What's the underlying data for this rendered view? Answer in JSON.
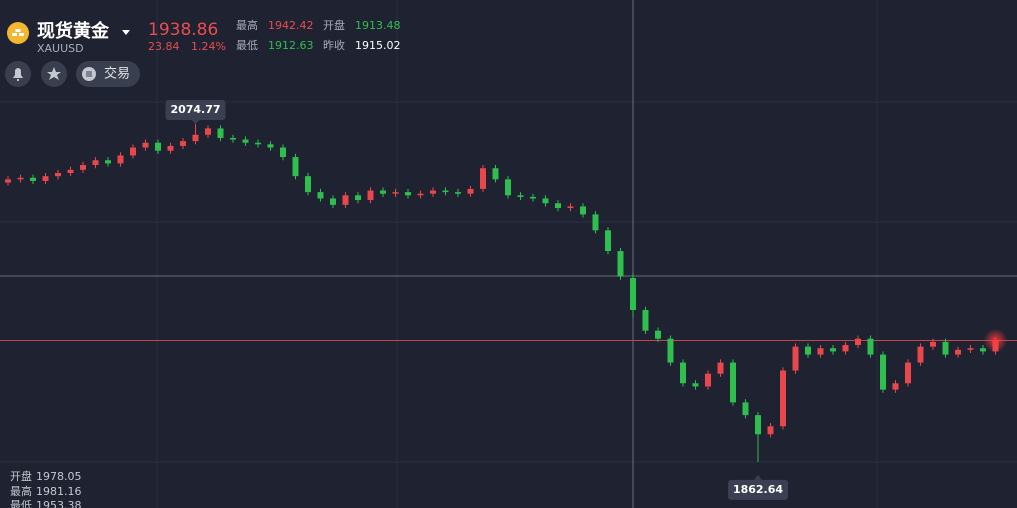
{
  "header": {
    "name": "现货黄金",
    "symbol": "XAUUSD",
    "price": 1938.86,
    "change": 23.84,
    "change_pct": "1.24%",
    "stats": [
      {
        "label": "最高",
        "value": 1942.42
      },
      {
        "label": "开盘",
        "value": 1913.48
      },
      {
        "label": "最低",
        "value": 1912.63
      },
      {
        "label": "昨收",
        "value": 1915.02
      }
    ],
    "actions": [
      "交易"
    ]
  },
  "chart_data": {
    "type": "candlestick",
    "ylim": [
      1833.7,
      2152.6
    ],
    "up_color": "#e8474b",
    "down_color": "#2fbf4f",
    "ohlc_labels": [
      "开盘",
      "最高",
      "最低"
    ],
    "open": [
      2038,
      2040,
      2041,
      2039,
      2042,
      2044,
      2046,
      2049,
      2052,
      2050,
      2055,
      2060,
      2063,
      2058,
      2061,
      2064,
      2068,
      2072,
      2066,
      2065,
      2063,
      2062,
      2060,
      2054,
      2042,
      2032,
      2028,
      2024,
      2030,
      2027,
      2033,
      2031,
      2032,
      2030,
      2031,
      2033,
      2032,
      2031,
      2034,
      2047,
      2040,
      2030,
      2029,
      2028,
      2025,
      2022,
      2023,
      2018,
      2008,
      1995,
      1978.05,
      1958,
      1945,
      1940,
      1925,
      1912,
      1910,
      1918,
      1925,
      1900,
      1892,
      1880,
      1885,
      1920,
      1935,
      1930,
      1934,
      1932,
      1936,
      1940,
      1930,
      1908,
      1912,
      1925,
      1935,
      1938,
      1930,
      1933,
      1934,
      1932
    ],
    "high": [
      2042,
      2043,
      2043,
      2044,
      2046,
      2048,
      2051,
      2054,
      2054,
      2057,
      2062,
      2065,
      2065,
      2063,
      2066,
      2074.77,
      2074,
      2074,
      2068,
      2067,
      2065,
      2064,
      2062,
      2056,
      2044,
      2034,
      2030,
      2032,
      2032,
      2035,
      2035,
      2034,
      2034,
      2033,
      2035,
      2035,
      2034,
      2036,
      2049,
      2049,
      2042,
      2032,
      2031,
      2030,
      2027,
      2025,
      2025,
      2020,
      2010,
      1997,
      1981.16,
      1960,
      1947,
      1942,
      1927,
      1914,
      1920,
      1927,
      1927,
      1902,
      1894,
      1887,
      1922,
      1937,
      1937,
      1936,
      1936,
      1938,
      1942,
      1942,
      1932,
      1914,
      1927,
      1937,
      1940,
      1940,
      1935,
      1936,
      1936,
      1941
    ],
    "low": [
      2036,
      2038,
      2037,
      2037,
      2040,
      2042,
      2044,
      2047,
      2048,
      2048,
      2053,
      2058,
      2056,
      2056,
      2059,
      2062,
      2066,
      2064,
      2063,
      2061,
      2060,
      2058,
      2052,
      2040,
      2030,
      2026,
      2022,
      2022,
      2025,
      2025,
      2029,
      2029,
      2028,
      2028,
      2029,
      2030,
      2029,
      2029,
      2032,
      2038,
      2028,
      2027,
      2026,
      2023,
      2020,
      2020,
      2016,
      2006,
      1993,
      1977,
      1953.38,
      1943,
      1938,
      1923,
      1910,
      1908,
      1908,
      1916,
      1898,
      1890,
      1862.64,
      1878,
      1883,
      1918,
      1928,
      1928,
      1930,
      1930,
      1934,
      1928,
      1906,
      1906,
      1910,
      1923,
      1933,
      1928,
      1928,
      1931,
      1930,
      1930
    ],
    "close": [
      2040,
      2041,
      2039,
      2042,
      2044,
      2046,
      2049,
      2052,
      2050,
      2055,
      2060,
      2063,
      2058,
      2061,
      2064,
      2068,
      2072,
      2066,
      2065,
      2063,
      2062,
      2060,
      2054,
      2042,
      2032,
      2028,
      2024,
      2030,
      2027,
      2033,
      2031,
      2032,
      2030,
      2031,
      2033,
      2032,
      2031,
      2034,
      2047,
      2040,
      2030,
      2029,
      2028,
      2025,
      2022,
      2023,
      2018,
      2008,
      1995,
      1979,
      1958,
      1945,
      1940,
      1925,
      1912,
      1910,
      1918,
      1925,
      1900,
      1892,
      1880,
      1885,
      1920,
      1935,
      1930,
      1934,
      1932,
      1936,
      1940,
      1930,
      1908,
      1912,
      1925,
      1935,
      1938,
      1930,
      1933,
      1934,
      1932,
      1938.86
    ]
  }
}
